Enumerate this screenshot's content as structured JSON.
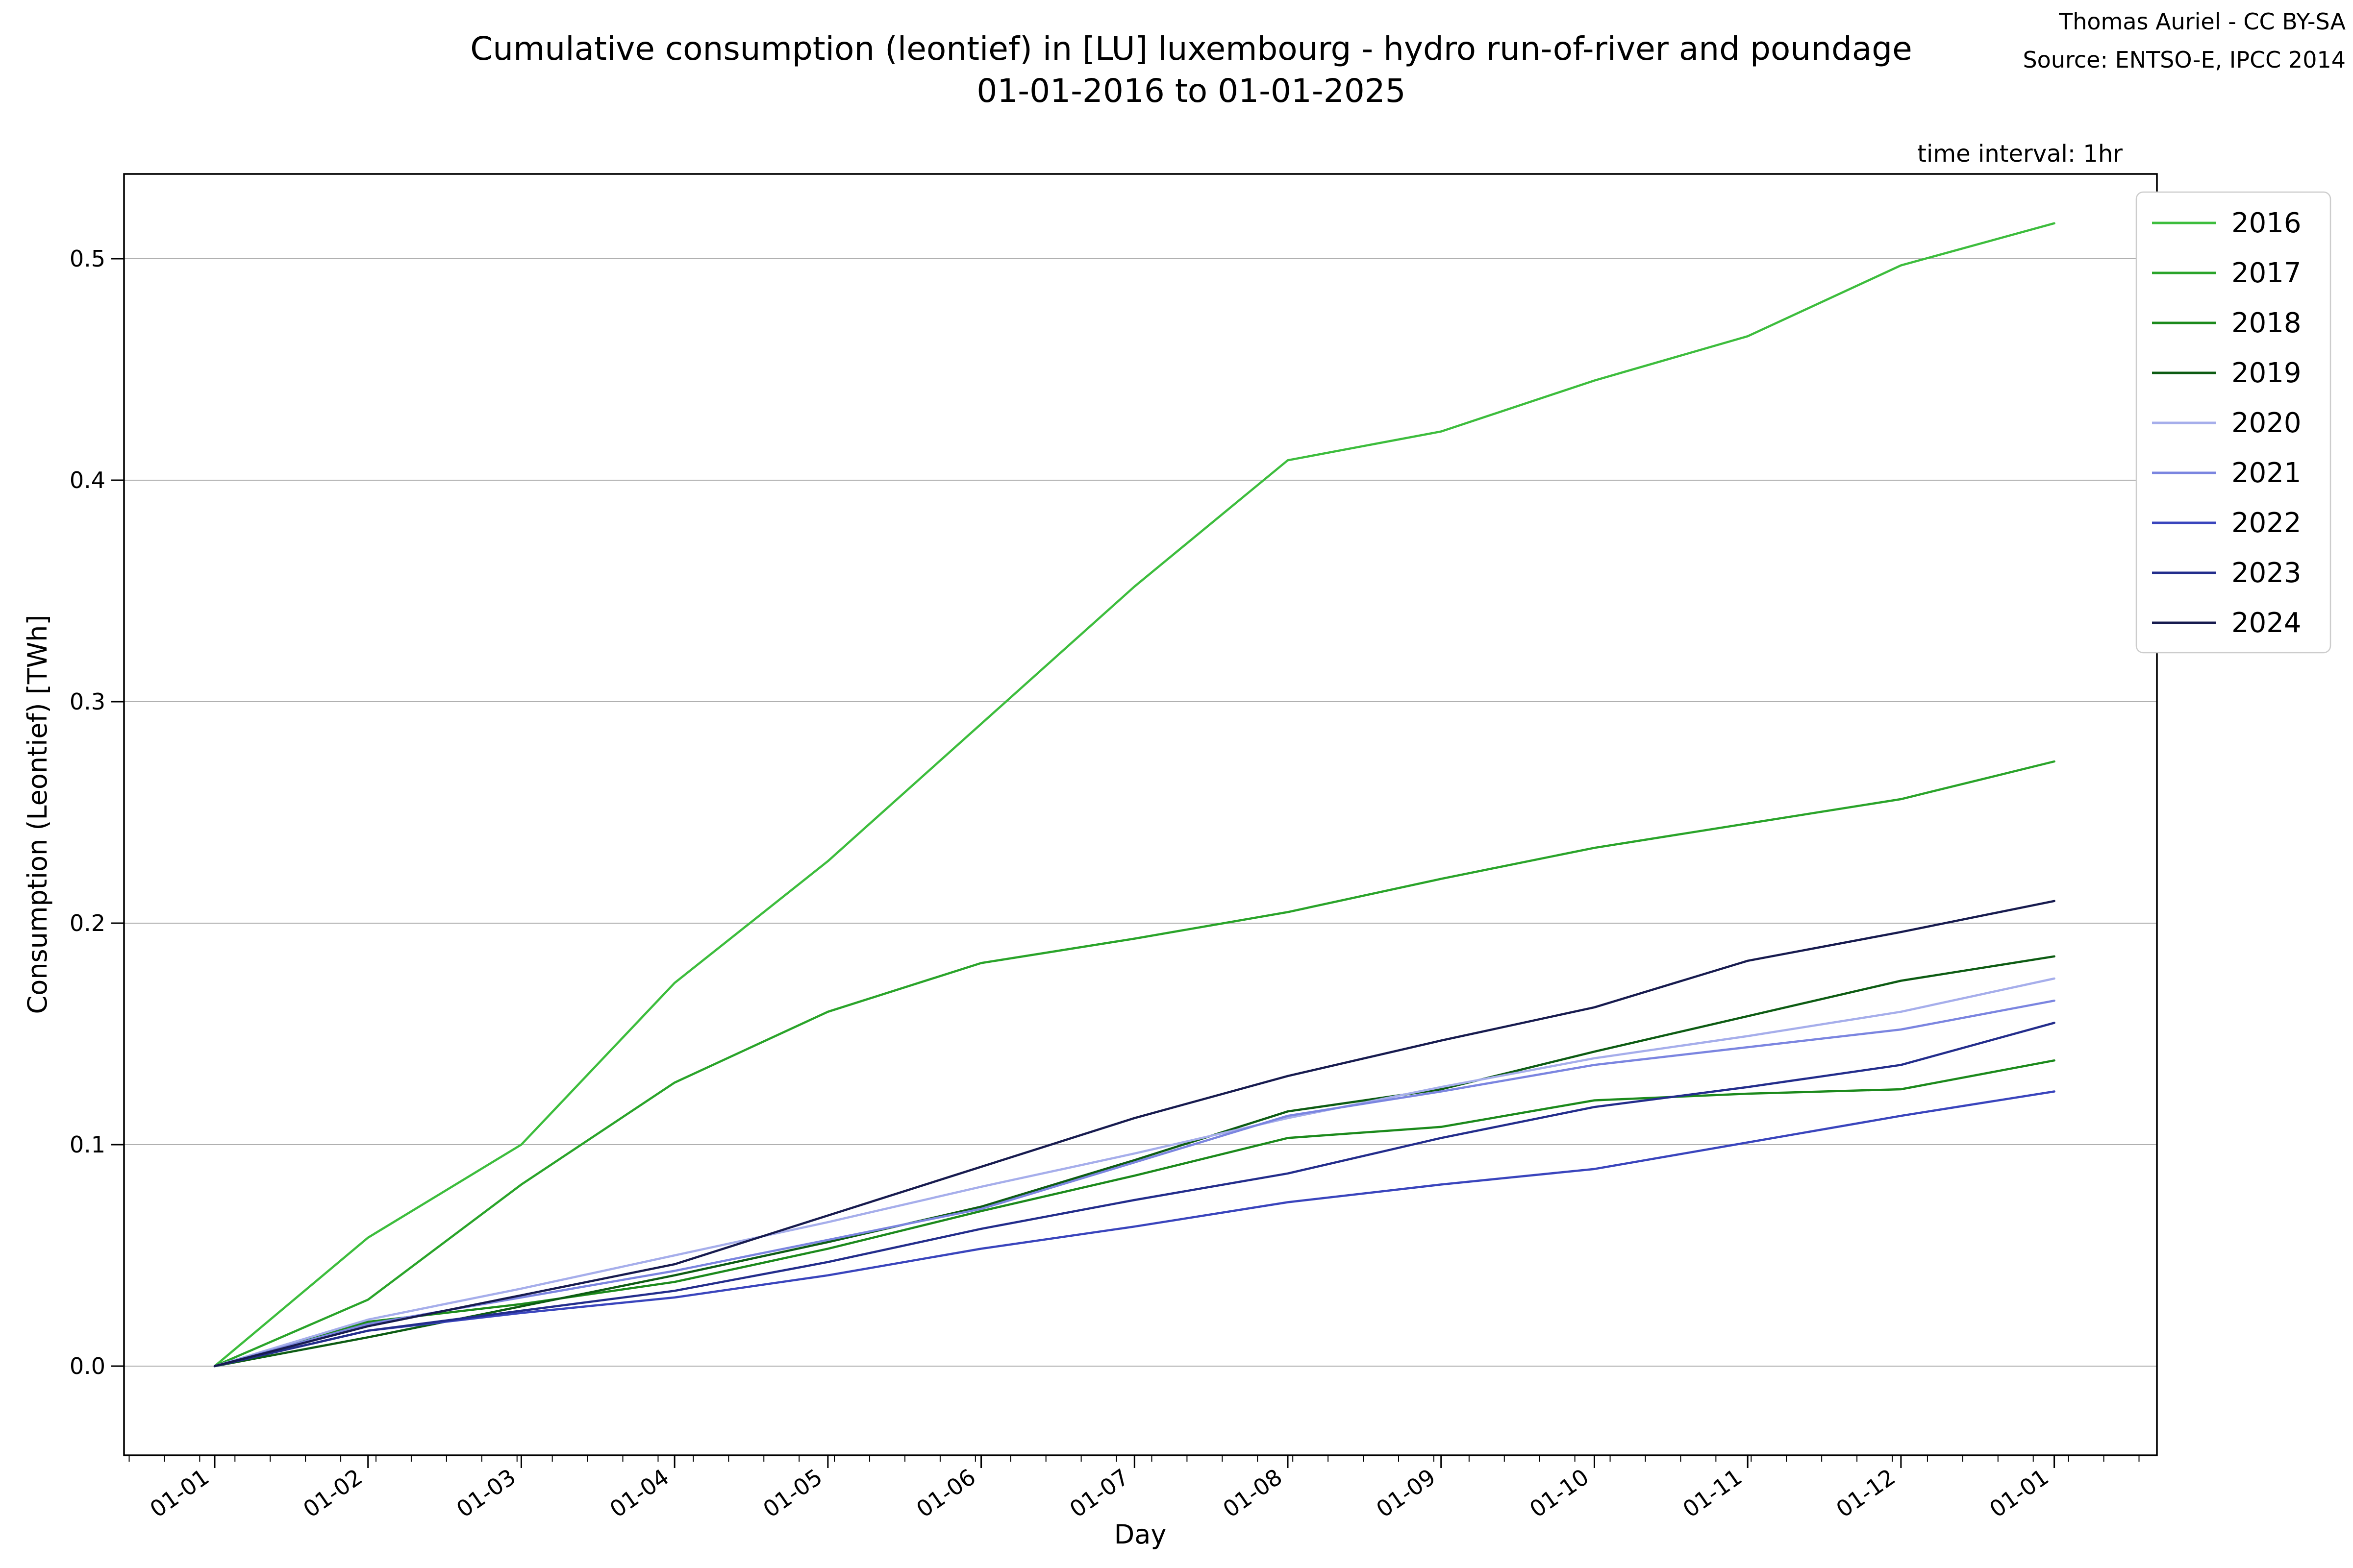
{
  "title": {
    "line1": "Cumulative consumption (leontief) in [LU] luxembourg - hydro run-of-river and poundage",
    "line2": "01-01-2016 to 01-01-2025"
  },
  "credits": {
    "line1": "Thomas Auriel - CC BY-SA",
    "line2": "Source: ENTSO-E, IPCC 2014"
  },
  "annotation": "time interval: 1hr",
  "chart_data": {
    "type": "line",
    "title": "Cumulative consumption (leontief) in [LU] luxembourg - hydro run-of-river and poundage 01-01-2016 to 01-01-2025",
    "xlabel": "Day",
    "ylabel": "Consumption (Leontief) [TWh]",
    "x_tick_labels": [
      "01-01",
      "01-02",
      "01-03",
      "01-04",
      "01-05",
      "01-06",
      "01-07",
      "01-08",
      "01-09",
      "01-10",
      "01-11",
      "01-12",
      "01-01"
    ],
    "y_tick_labels": [
      "0.0",
      "0.1",
      "0.2",
      "0.3",
      "0.4",
      "0.5"
    ],
    "y_tick_values": [
      0.0,
      0.1,
      0.2,
      0.3,
      0.4,
      0.5
    ],
    "ylim": [
      -0.04,
      0.545
    ],
    "grid": "horizontal-only",
    "legend_position": "right",
    "categories": [
      "01-01",
      "01-02",
      "01-03",
      "01-04",
      "01-05",
      "01-06",
      "01-07",
      "01-08",
      "01-09",
      "01-10",
      "01-11",
      "01-12",
      "01-01"
    ],
    "series": [
      {
        "name": "2016",
        "color": "#3dbd3d",
        "values": [
          0,
          0.058,
          0.1,
          0.173,
          0.228,
          0.29,
          0.352,
          0.409,
          0.422,
          0.445,
          0.465,
          0.497,
          0.516
        ]
      },
      {
        "name": "2017",
        "color": "#2aa42a",
        "values": [
          0,
          0.03,
          0.082,
          0.128,
          0.16,
          0.182,
          0.193,
          0.205,
          0.22,
          0.234,
          0.245,
          0.256,
          0.273
        ]
      },
      {
        "name": "2018",
        "color": "#1c8a1c",
        "values": [
          0,
          0.02,
          0.028,
          0.038,
          0.053,
          0.07,
          0.086,
          0.103,
          0.108,
          0.12,
          0.123,
          0.125,
          0.138
        ]
      },
      {
        "name": "2019",
        "color": "#0d5c13",
        "values": [
          0,
          0.013,
          0.027,
          0.041,
          0.056,
          0.072,
          0.093,
          0.115,
          0.125,
          0.142,
          0.158,
          0.174,
          0.185
        ]
      },
      {
        "name": "2020",
        "color": "#a6aeeb",
        "values": [
          0,
          0.021,
          0.035,
          0.05,
          0.065,
          0.081,
          0.096,
          0.112,
          0.126,
          0.139,
          0.149,
          0.16,
          0.175
        ]
      },
      {
        "name": "2021",
        "color": "#7b85e0",
        "values": [
          0,
          0.019,
          0.031,
          0.043,
          0.057,
          0.071,
          0.092,
          0.113,
          0.124,
          0.136,
          0.144,
          0.152,
          0.165
        ]
      },
      {
        "name": "2022",
        "color": "#3a45bd",
        "values": [
          0,
          0.016,
          0.024,
          0.031,
          0.041,
          0.053,
          0.063,
          0.074,
          0.082,
          0.089,
          0.101,
          0.113,
          0.124
        ]
      },
      {
        "name": "2023",
        "color": "#232d8c",
        "values": [
          0,
          0.016,
          0.025,
          0.034,
          0.047,
          0.062,
          0.075,
          0.087,
          0.103,
          0.117,
          0.126,
          0.136,
          0.155
        ]
      },
      {
        "name": "2024",
        "color": "#171b4f",
        "values": [
          0,
          0.018,
          0.032,
          0.046,
          0.068,
          0.09,
          0.112,
          0.131,
          0.147,
          0.162,
          0.183,
          0.196,
          0.21
        ]
      }
    ]
  }
}
